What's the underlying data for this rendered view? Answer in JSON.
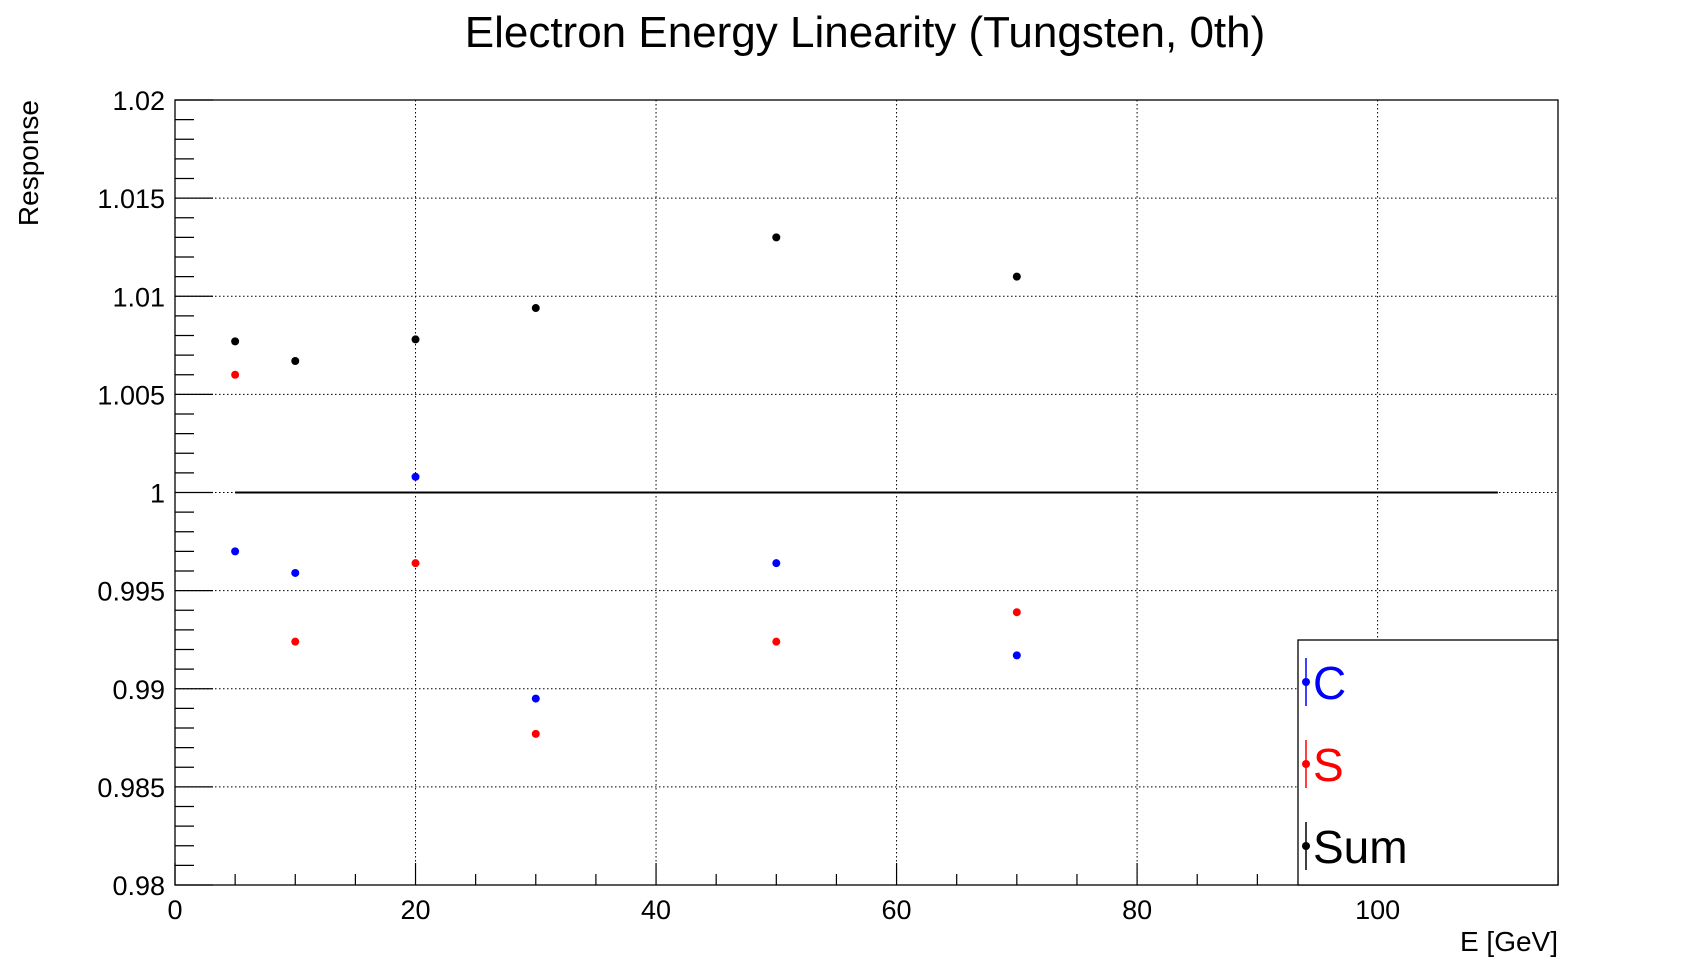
{
  "chart_data": {
    "type": "scatter",
    "title": "Electron Energy Linearity (Tungsten, 0th)",
    "xlabel": "E [GeV]",
    "ylabel": "Response",
    "xlim": [
      0,
      115
    ],
    "ylim": [
      0.98,
      1.02
    ],
    "xticks": [
      "0",
      "20",
      "40",
      "60",
      "80",
      "100"
    ],
    "yticks": [
      "0.98",
      "0.985",
      "0.99",
      "0.995",
      "1",
      "1.005",
      "1.01",
      "1.015",
      "1.02"
    ],
    "grid": true,
    "legend_position": "bottom-right",
    "reference_line": {
      "y": 1.0,
      "x_range": [
        5,
        110
      ],
      "color": "#000000"
    },
    "series": [
      {
        "name": "C",
        "color": "#0000ff",
        "x": [
          5,
          10,
          20,
          30,
          50,
          70
        ],
        "y": [
          0.997,
          0.9959,
          1.0008,
          0.9895,
          0.9964,
          0.9917
        ]
      },
      {
        "name": "S",
        "color": "#ff0000",
        "x": [
          5,
          10,
          20,
          30,
          50,
          70
        ],
        "y": [
          1.006,
          0.9924,
          0.9964,
          0.9877,
          0.9924,
          0.9939
        ]
      },
      {
        "name": "Sum",
        "color": "#000000",
        "x": [
          5,
          10,
          20,
          30,
          50,
          70
        ],
        "y": [
          1.0077,
          1.0067,
          1.0078,
          1.0094,
          1.013,
          1.011
        ]
      }
    ]
  }
}
